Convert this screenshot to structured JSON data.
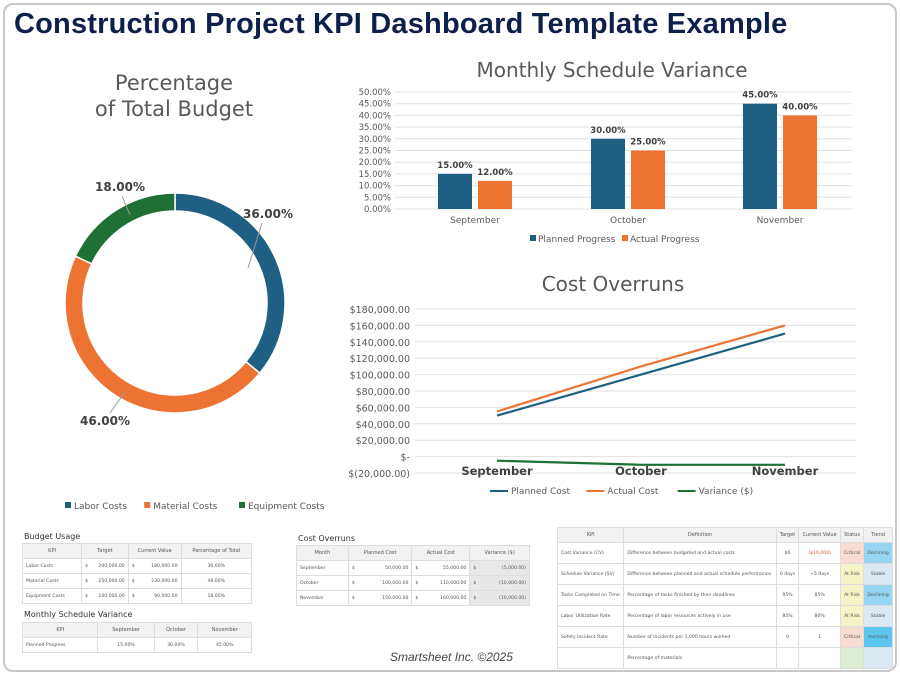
{
  "title": "Construction Project KPI Dashboard Template Example",
  "footer": "Smartsheet Inc. ©2025",
  "colors": {
    "blue": "#1f5f83",
    "orange": "#ed7332",
    "green": "#1e7035",
    "navy": "#0f1f4b"
  },
  "chart_data": [
    {
      "type": "pie",
      "title": "Percentage of Total Budget",
      "title_lines": [
        "Percentage",
        "of Total Budget"
      ],
      "categories": [
        "Labor Costs",
        "Material Costs",
        "Equipment Costs"
      ],
      "values": [
        36,
        46,
        18
      ],
      "labels": [
        "36.00%",
        "46.00%",
        "18.00%"
      ],
      "legend": "bottom"
    },
    {
      "type": "bar",
      "title": "Monthly Schedule Variance",
      "categories": [
        "September",
        "October",
        "November"
      ],
      "series": [
        {
          "name": "Planned Progress",
          "values": [
            15,
            30,
            45
          ],
          "labels": [
            "15.00%",
            "30.00%",
            "45.00%"
          ]
        },
        {
          "name": "Actual Progress",
          "values": [
            12,
            25,
            40
          ],
          "labels": [
            "12.00%",
            "25.00%",
            "40.00%"
          ]
        }
      ],
      "ylim": [
        0,
        50
      ],
      "yticks": [
        "0.00%",
        "5.00%",
        "10.00%",
        "15.00%",
        "20.00%",
        "25.00%",
        "30.00%",
        "35.00%",
        "40.00%",
        "45.00%",
        "50.00%"
      ],
      "grid": true,
      "legend": "bottom"
    },
    {
      "type": "line",
      "title": "Cost Overruns",
      "categories": [
        "September",
        "October",
        "November"
      ],
      "series": [
        {
          "name": "Planned Cost",
          "values": [
            50000,
            100000,
            150000
          ]
        },
        {
          "name": "Actual Cost",
          "values": [
            55000,
            110000,
            160000
          ]
        },
        {
          "name": "Variance ($)",
          "values": [
            -5000,
            -10000,
            -10000
          ]
        }
      ],
      "ylim": [
        -20000,
        180000
      ],
      "yticks": [
        "$(20,000.00)",
        "$-",
        "$20,000.00",
        "$40,000.00",
        "$60,000.00",
        "$80,000.00",
        "$100,000.00",
        "$120,000.00",
        "$140,000.00",
        "$160,000.00",
        "$180,000.00"
      ],
      "grid": true,
      "legend": "bottom"
    }
  ],
  "budget_usage": {
    "caption": "Budget Usage",
    "headers": [
      "KPI",
      "Target",
      "Current Value",
      "Percentage of Total"
    ],
    "rows": [
      [
        "Labor Costs",
        "200,000.00",
        "180,000.00",
        "36.00%"
      ],
      [
        "Material Costs",
        "250,000.00",
        "230,000.00",
        "46.00%"
      ],
      [
        "Equipment Costs",
        "100,000.00",
        "90,000.00",
        "18.00%"
      ]
    ],
    "currency": "$"
  },
  "schedule_variance": {
    "caption": "Monthly Schedule Variance",
    "headers": [
      "KPI",
      "September",
      "October",
      "November"
    ],
    "rows": [
      [
        "Planned Progress",
        "15.00%",
        "30.00%",
        "45.00%"
      ]
    ]
  },
  "cost_overruns": {
    "caption": "Cost Overruns",
    "headers": [
      "Month",
      "Planned Cost",
      "Actual Cost",
      "Variance ($)"
    ],
    "rows": [
      [
        "September",
        "50,000.00",
        "55,000.00",
        "(5,000.00)"
      ],
      [
        "October",
        "100,000.00",
        "110,000.00",
        "(10,000.00)"
      ],
      [
        "November",
        "150,000.00",
        "160,000.00",
        "(10,000.00)"
      ]
    ],
    "currency": "$"
  },
  "kpi_table": {
    "headers": [
      "KPI",
      "Definition",
      "Target",
      "Current Value",
      "Status",
      "Trend"
    ],
    "rows": [
      [
        "Cost Variance (CV)",
        "Difference between budgeted and actual costs",
        "$0",
        "($10,000)",
        "Critical",
        "Declining"
      ],
      [
        "Schedule Variance (SV)",
        "Difference between planned and actual schedule performance",
        "0 days",
        "+5 days",
        "At Risk",
        "Stable"
      ],
      [
        "Tasks Completed on Time",
        "Percentage of tasks finished by their deadlines",
        "95%",
        "85%",
        "At Risk",
        "Declining"
      ],
      [
        "Labor Utilization Rate",
        "Percentage of labor resources actively in use",
        "85%",
        "80%",
        "At Risk",
        "Stable"
      ],
      [
        "Safety Incident Rate",
        "Number of incidents per 1,000 hours worked",
        "0",
        "1",
        "Critical",
        "Inclining"
      ],
      [
        "",
        "Percentage of materials",
        "",
        "",
        "",
        ""
      ]
    ],
    "status_colors": {
      "Critical": "#f8dcd0",
      "At Risk": "#f6f4c6",
      "On Track": "#dcedd2"
    },
    "trend_colors": {
      "Declining": "#97d6f2",
      "Stable": "#dce9f5",
      "Inclining": "#5cc6ee"
    }
  }
}
